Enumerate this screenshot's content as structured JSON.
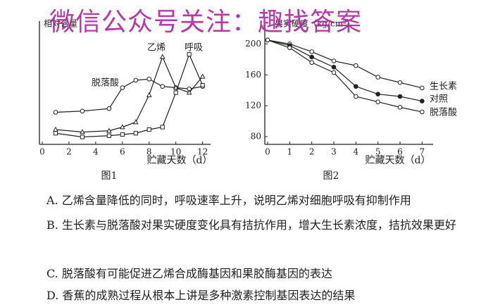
{
  "watermark": "微信公众号关注：趣找答案",
  "chart_data": [
    {
      "type": "line",
      "y_label": "相对含量",
      "x_label": "贮藏天数（d）",
      "caption": "图1",
      "x": [
        1,
        3,
        5,
        6,
        7,
        8,
        9,
        10,
        11,
        12
      ],
      "xlim": [
        0,
        12.6
      ],
      "xticks": [
        0,
        2,
        4,
        6,
        8,
        10,
        12
      ],
      "ylim": [
        0,
        100
      ],
      "series": [
        {
          "name": "脱落酸",
          "color": "#222222",
          "marker": "circle-open",
          "values": [
            26,
            27,
            29,
            46,
            52,
            53,
            47,
            46,
            45,
            47
          ]
        },
        {
          "name": "乙烯",
          "color": "#222222",
          "marker": "triangle-open",
          "values": [
            12,
            10,
            11,
            14,
            18,
            40,
            71,
            46,
            42,
            55
          ]
        },
        {
          "name": "呼吸",
          "color": "#222222",
          "marker": "square-open",
          "values": [
            9,
            6,
            7,
            8,
            9,
            12,
            14,
            42,
            73,
            48
          ]
        }
      ]
    },
    {
      "type": "line",
      "y_label": "果实硬度（kg/cm²）",
      "x_label": "贮藏天数（d）",
      "caption": "图2",
      "x": [
        0,
        1,
        2,
        3,
        4,
        5,
        6,
        7
      ],
      "xlim": [
        0,
        7.5
      ],
      "xticks": [
        0,
        1,
        2,
        3,
        4,
        5,
        6,
        7
      ],
      "ylim": [
        70,
        225
      ],
      "yticks": [
        80,
        120,
        160,
        200
      ],
      "series": [
        {
          "name": "生长素",
          "color": "#222222",
          "marker": "circle-open",
          "values": [
            205,
            200,
            190,
            178,
            172,
            157,
            150,
            143
          ]
        },
        {
          "name": "对照",
          "color": "#222222",
          "marker": "circle-filled",
          "values": [
            205,
            198,
            183,
            170,
            145,
            135,
            132,
            126
          ]
        },
        {
          "name": "脱落酸",
          "color": "#222222",
          "marker": "circle-open",
          "values": [
            205,
            195,
            176,
            163,
            132,
            125,
            118,
            112
          ]
        }
      ]
    }
  ],
  "options": [
    "A. 乙烯含量降低的同时，呼吸速率上升，说明乙烯对细胞呼吸有抑制作用",
    "B. 生长素与脱落酸对果实硬度变化具有拮抗作用，增大生长素浓度，拮抗效果更好",
    "C. 脱落酸有可能促进乙烯合成酶基因和果胶酶基因的表达",
    "D. 香蕉的成熟过程从根本上讲是多种激素控制基因表达的结果"
  ]
}
